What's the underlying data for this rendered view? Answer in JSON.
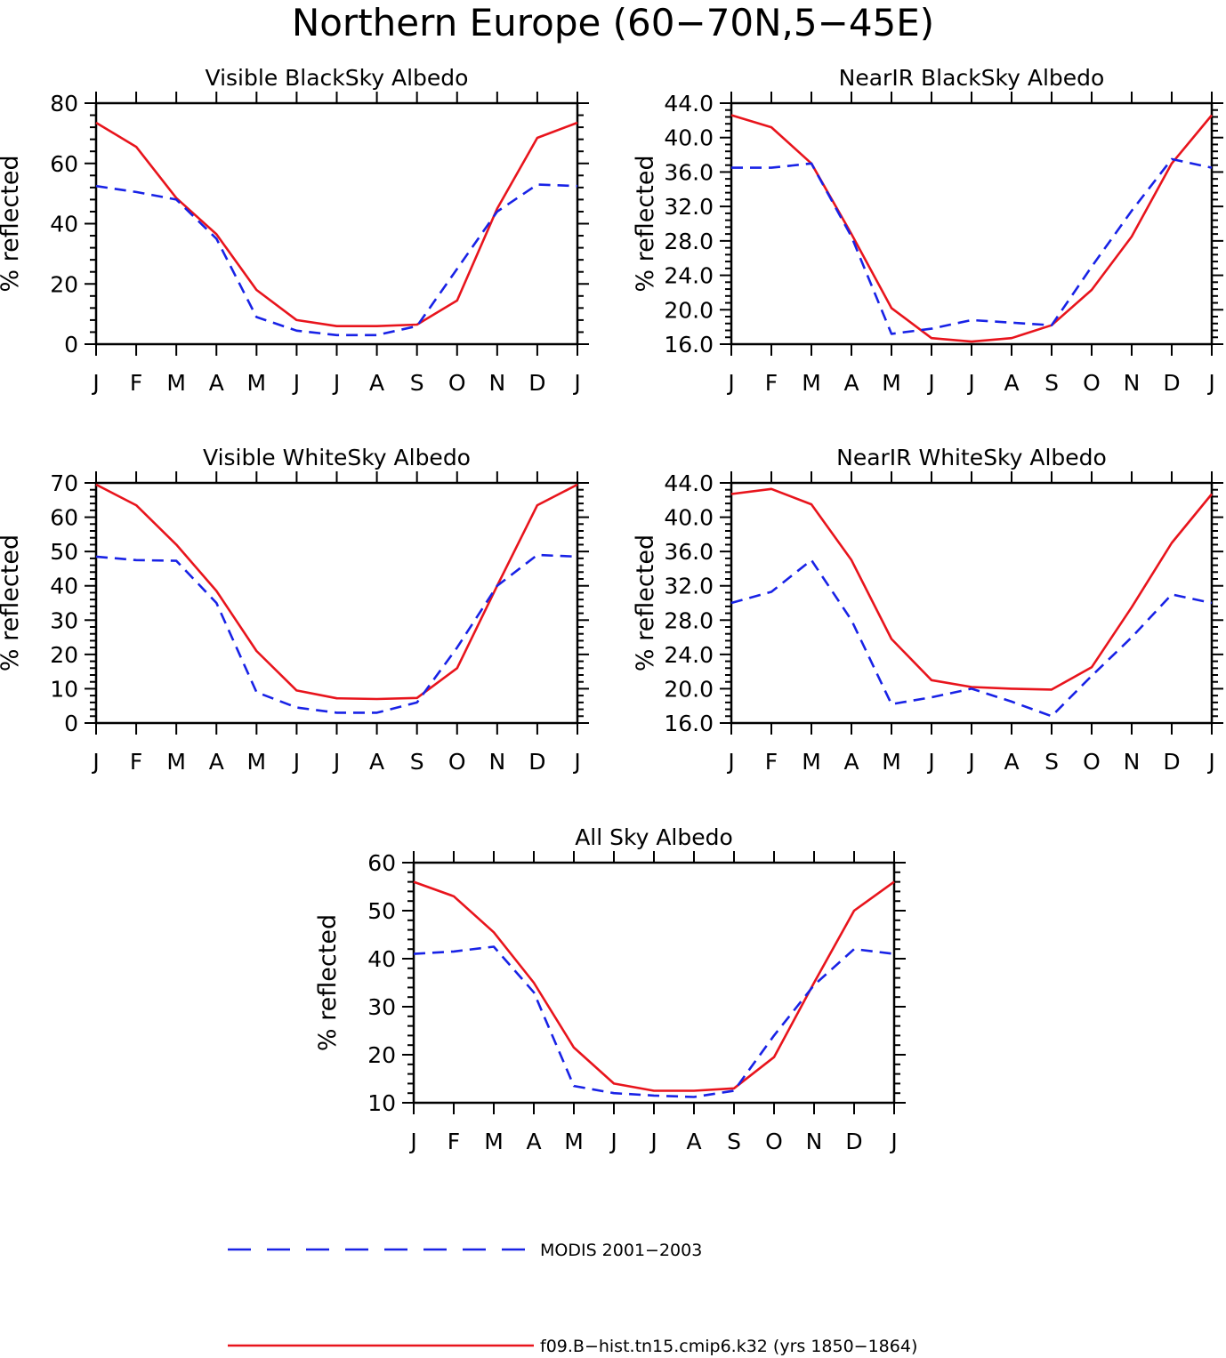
{
  "title": "Northern Europe (60−70N,5−45E)",
  "colors": {
    "model": "#e8141c",
    "obs": "#1822e6",
    "axis": "#000000"
  },
  "legend": [
    {
      "key": "obs",
      "label": "MODIS 2001−2003",
      "style": "dashed"
    },
    {
      "key": "model",
      "label": "f09.B−hist.tn15.cmip6.k32 (yrs 1850−1864)",
      "style": "solid"
    }
  ],
  "chart_data": [
    {
      "type": "line",
      "title": "Visible BlackSky Albedo",
      "ylabel": "% reflected",
      "ylim": [
        0,
        80
      ],
      "yticks": [
        "0",
        "20",
        "40",
        "60",
        "80"
      ],
      "categories": [
        "J",
        "F",
        "M",
        "A",
        "M",
        "J",
        "J",
        "A",
        "S",
        "O",
        "N",
        "D",
        "J"
      ],
      "series": [
        {
          "key": "model",
          "values": [
            73.5,
            65.5,
            48.5,
            36.5,
            18,
            8,
            6,
            6,
            6.5,
            14.5,
            45,
            68.5,
            73.5
          ]
        },
        {
          "key": "obs",
          "values": [
            52.5,
            50.5,
            48,
            35,
            9,
            4.5,
            3,
            3,
            6,
            25,
            44,
            53,
            52.5
          ]
        }
      ]
    },
    {
      "type": "line",
      "title": "NearIR BlackSky Albedo",
      "ylabel": "% reflected",
      "ylim": [
        16,
        44
      ],
      "yticks": [
        "16.0",
        "20.0",
        "24.0",
        "28.0",
        "32.0",
        "36.0",
        "40.0",
        "44.0"
      ],
      "categories": [
        "J",
        "F",
        "M",
        "A",
        "M",
        "J",
        "J",
        "A",
        "S",
        "O",
        "N",
        "D",
        "J"
      ],
      "series": [
        {
          "key": "model",
          "values": [
            42.6,
            41.2,
            37,
            28.8,
            20.2,
            16.7,
            16.3,
            16.7,
            18.2,
            22.3,
            28.5,
            37,
            42.6
          ]
        },
        {
          "key": "obs",
          "values": [
            36.5,
            36.5,
            37,
            28.5,
            17.2,
            17.8,
            18.8,
            18.5,
            18.2,
            25,
            31.5,
            37.5,
            36.5
          ]
        }
      ]
    },
    {
      "type": "line",
      "title": "Visible WhiteSky Albedo",
      "ylabel": "% reflected",
      "ylim": [
        0,
        70
      ],
      "yticks": [
        "0",
        "10",
        "20",
        "30",
        "40",
        "50",
        "60",
        "70"
      ],
      "categories": [
        "J",
        "F",
        "M",
        "A",
        "M",
        "J",
        "J",
        "A",
        "S",
        "O",
        "N",
        "D",
        "J"
      ],
      "series": [
        {
          "key": "model",
          "values": [
            69.5,
            63.5,
            52,
            38.5,
            21,
            9.5,
            7.2,
            7,
            7.3,
            16,
            40,
            63.5,
            69.5
          ]
        },
        {
          "key": "obs",
          "values": [
            48.5,
            47.5,
            47.3,
            35,
            9,
            4.5,
            3,
            3,
            6,
            22,
            40,
            49,
            48.5
          ]
        }
      ]
    },
    {
      "type": "line",
      "title": "NearIR WhiteSky Albedo",
      "ylabel": "% reflected",
      "ylim": [
        16,
        44
      ],
      "yticks": [
        "16.0",
        "20.0",
        "24.0",
        "28.0",
        "32.0",
        "36.0",
        "40.0",
        "44.0"
      ],
      "categories": [
        "J",
        "F",
        "M",
        "A",
        "M",
        "J",
        "J",
        "A",
        "S",
        "O",
        "N",
        "D",
        "J"
      ],
      "series": [
        {
          "key": "model",
          "values": [
            42.7,
            43.3,
            41.5,
            35,
            25.8,
            21,
            20.2,
            20,
            19.9,
            22.5,
            29.5,
            37,
            42.7
          ]
        },
        {
          "key": "obs",
          "values": [
            30,
            31.3,
            35,
            28,
            18.2,
            19,
            20,
            18.5,
            16.8,
            21.5,
            26,
            31,
            30
          ]
        }
      ]
    },
    {
      "type": "line",
      "title": "All Sky Albedo",
      "ylabel": "% reflected",
      "ylim": [
        10,
        60
      ],
      "yticks": [
        "10",
        "20",
        "30",
        "40",
        "50",
        "60"
      ],
      "categories": [
        "J",
        "F",
        "M",
        "A",
        "M",
        "J",
        "J",
        "A",
        "S",
        "O",
        "N",
        "D",
        "J"
      ],
      "series": [
        {
          "key": "model",
          "values": [
            56,
            53,
            45.5,
            35,
            21.5,
            14,
            12.5,
            12.5,
            13,
            19.5,
            35,
            50,
            56
          ]
        },
        {
          "key": "obs",
          "values": [
            41,
            41.5,
            42.5,
            33,
            13.5,
            12,
            11.5,
            11.2,
            12.5,
            24,
            34.5,
            42,
            41
          ]
        }
      ]
    }
  ]
}
